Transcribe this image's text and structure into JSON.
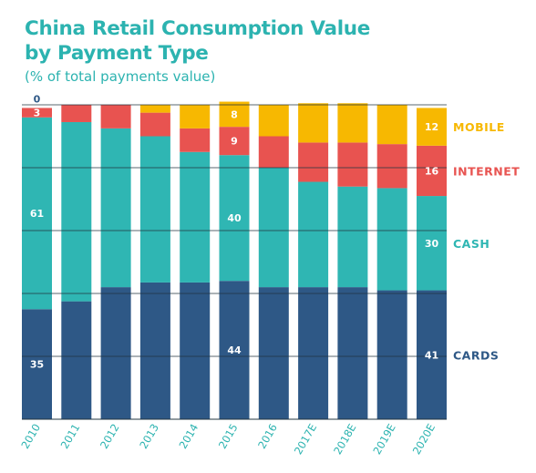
{
  "header": {
    "title_line1": "China Retail Consumption Value",
    "title_line2": "by Payment Type",
    "subtitle": "(% of total payments value)"
  },
  "colors": {
    "title": "#2cb3b0",
    "subtitle": "#2cb3b0",
    "cards": "#2e5886",
    "cash": "#2fb6b3",
    "internet": "#e85350",
    "mobile": "#f7b801",
    "tick": "#2cb3b0"
  },
  "chart_data": {
    "type": "bar",
    "stacked": true,
    "categories": [
      "2010",
      "2011",
      "2012",
      "2013",
      "2014",
      "2015",
      "2016",
      "2017E",
      "2018E",
      "2019E",
      "2020E"
    ],
    "ylim": [
      0,
      100
    ],
    "series": [
      {
        "name": "CARDS",
        "color": "#2e5886",
        "values": [
          35,
          37.5,
          42,
          43.5,
          43.5,
          44,
          42,
          42,
          42,
          41,
          41
        ],
        "data_labels": {
          "0": "35",
          "5": "44",
          "10": "41"
        }
      },
      {
        "name": "CASH",
        "color": "#2fb6b3",
        "values": [
          61,
          57,
          50.5,
          46.5,
          41.5,
          40,
          38,
          33.5,
          32,
          32.5,
          30
        ],
        "data_labels": {
          "0": "61",
          "5": "40",
          "10": "30"
        }
      },
      {
        "name": "INTERNET",
        "color": "#e85350",
        "values": [
          3,
          5.5,
          7.5,
          7.5,
          7.5,
          9,
          10,
          12.5,
          14,
          14,
          16
        ],
        "data_labels": {
          "0": "3",
          "5": "9",
          "10": "16"
        }
      },
      {
        "name": "MOBILE",
        "color": "#f7b801",
        "values": [
          0,
          0,
          0,
          2.5,
          7.5,
          8,
          10,
          12.5,
          12.5,
          12.5,
          12
        ],
        "data_labels": {
          "0": "0",
          "5": "8",
          "10": "12"
        }
      }
    ]
  }
}
